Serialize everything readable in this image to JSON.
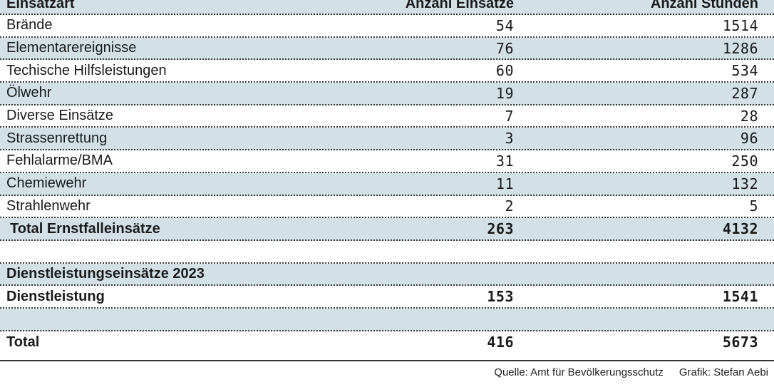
{
  "header": {
    "col0": "Einsatzart",
    "col1": "Anzahl Einsätze",
    "col2": "Anzahl Stunden"
  },
  "rows": [
    {
      "label": "Brände",
      "einsaetze": "54",
      "stunden": "1514"
    },
    {
      "label": "Elementarereignisse",
      "einsaetze": "76",
      "stunden": "1286"
    },
    {
      "label": "Techische Hilfsleistungen",
      "einsaetze": "60",
      "stunden": "534"
    },
    {
      "label": "Ölwehr",
      "einsaetze": "19",
      "stunden": "287"
    },
    {
      "label": "Diverse Einsätze",
      "einsaetze": "7",
      "stunden": "28"
    },
    {
      "label": "Strassenrettung",
      "einsaetze": "3",
      "stunden": "96"
    },
    {
      "label": "Fehlalarme/BMA",
      "einsaetze": "31",
      "stunden": "250"
    },
    {
      "label": "Chemiewehr",
      "einsaetze": "11",
      "stunden": "132"
    },
    {
      "label": "Strahlenwehr",
      "einsaetze": "2",
      "stunden": "5"
    }
  ],
  "total_ernstfall": {
    "label": "Total Ernstfalleinsätze",
    "einsaetze": "263",
    "stunden": "4132"
  },
  "dienst_heading": "Dienstleistungseinsätze 2023",
  "dienst": {
    "label": "Dienstleistung",
    "einsaetze": "153",
    "stunden": "1541"
  },
  "total": {
    "label": "Total",
    "einsaetze": "416",
    "stunden": "5673"
  },
  "footer": {
    "source": "Quelle: Amt für Bevölkerungsschutz",
    "credit": "Grafik: Stefan Aebi"
  },
  "colors": {
    "shade": "#d3e1e6",
    "white": "#ffffff"
  }
}
